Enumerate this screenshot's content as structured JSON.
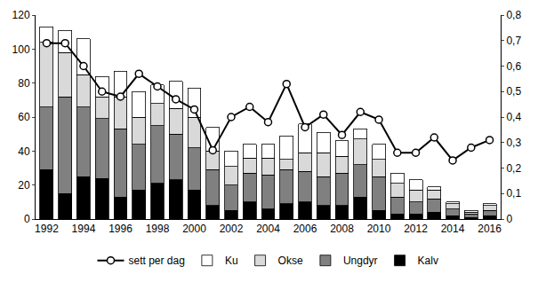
{
  "chart_data": {
    "type": "bar",
    "stacked": true,
    "grid": false,
    "legend": "bottom",
    "categories": [
      "1992",
      null,
      "1994",
      null,
      "1996",
      null,
      "1998",
      null,
      "2000",
      null,
      "2002",
      null,
      "2004",
      null,
      "2006",
      null,
      "2008",
      null,
      "2010",
      null,
      "2012",
      null,
      "2014",
      null,
      "2016"
    ],
    "ylim": [
      0,
      120
    ],
    "yticks": [
      0,
      20,
      40,
      60,
      80,
      100,
      120
    ],
    "y2lim": [
      0,
      0.8
    ],
    "y2ticks": [
      0,
      {
        "value": 0.1,
        "label": "0,1"
      },
      {
        "value": 0.2,
        "label": "0,2"
      },
      {
        "value": 0.3,
        "label": "0,3"
      },
      {
        "value": 0.4,
        "label": "0,4"
      },
      {
        "value": 0.5,
        "label": "0,5"
      },
      {
        "value": 0.6,
        "label": "0,6"
      },
      {
        "value": 0.7,
        "label": "0,7"
      },
      {
        "value": 0.8,
        "label": "0,8"
      }
    ],
    "series": [
      {
        "name": "Kalv",
        "type": "bar",
        "color": "#000000",
        "values": [
          29,
          15,
          25,
          24,
          13,
          17,
          21,
          23,
          17,
          8,
          5,
          10,
          6,
          9,
          10,
          8,
          8,
          13,
          5,
          3,
          3,
          4,
          2,
          1,
          2
        ]
      },
      {
        "name": "Ungdyr",
        "type": "bar",
        "color": "#808080",
        "values": [
          37,
          57,
          41,
          35,
          40,
          27,
          34,
          27,
          25,
          21,
          15,
          17,
          20,
          20,
          18,
          17,
          19,
          19,
          20,
          10,
          7,
          8,
          4,
          2,
          3
        ]
      },
      {
        "name": "Okse",
        "type": "bar",
        "color": "#d9d9d9",
        "values": [
          38,
          26,
          19,
          13,
          19,
          16,
          13,
          15,
          18,
          11,
          11,
          9,
          10,
          6,
          11,
          14,
          10,
          15,
          10,
          8,
          7,
          5,
          3,
          1,
          3
        ]
      },
      {
        "name": "Ku",
        "type": "bar",
        "color": "#ffffff",
        "values": [
          9,
          13,
          21,
          12,
          15,
          15,
          11,
          16,
          17,
          14,
          9,
          8,
          8,
          14,
          17,
          12,
          9,
          6,
          9,
          6,
          6,
          2,
          1,
          1,
          1
        ]
      },
      {
        "name": "sett per dag",
        "type": "line",
        "axis": "y2",
        "color": "#000000",
        "marker": "circle",
        "line_style": "solid",
        "values": [
          0.69,
          0.69,
          0.6,
          0.5,
          0.48,
          0.57,
          0.52,
          0.47,
          0.43,
          0.27,
          0.4,
          0.44,
          0.38,
          0.53,
          0.36,
          0.41,
          0.33,
          0.42,
          0.39,
          0.26,
          0.26,
          0.32,
          0.23,
          0.28,
          0.31
        ]
      }
    ]
  }
}
